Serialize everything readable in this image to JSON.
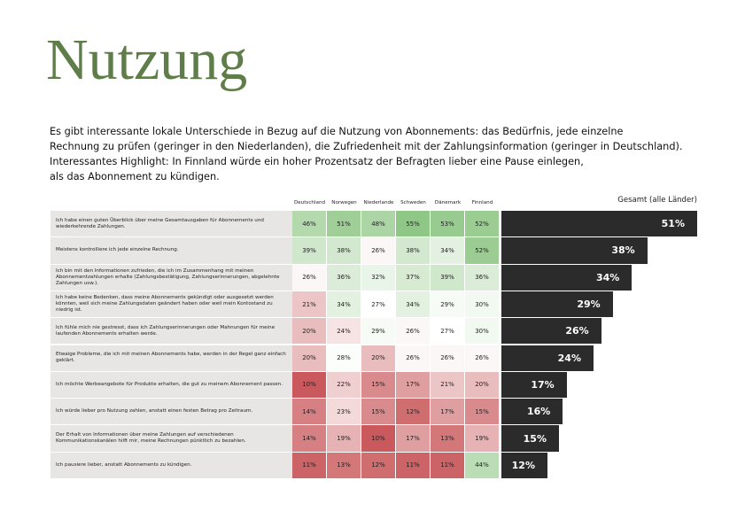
{
  "header": {
    "title": "Nutzung",
    "intro": [
      "Es gibt interessante lokale Unterschiede in Bezug auf die Nutzung von Abonnements: das Bedürfnis, jede einzelne",
      "Rechnung zu prüfen (geringer in den Niederlanden), die Zufriedenheit mit der Zahlungsinformation (geringer in Deutschland).",
      "Interessantes Highlight: In Finnland würde ein hoher Prozentsatz der Befragten lieber eine Pause einlegen,",
      "als das Abonnement zu kündigen."
    ]
  },
  "table": {
    "columns": [
      "Deutschland",
      "Norwegen",
      "Niederlande",
      "Schweden",
      "Dänemark",
      "Finnland"
    ],
    "total_header": "Gesamt (alle Länder)",
    "colors": {
      "low": "#c9595c",
      "mid": "#ffffff",
      "high": "#8fc786",
      "total": "#2b2b2b",
      "label_bg": "#e8e6e5"
    },
    "rows": [
      {
        "label": "Ich habe einen guten Überblick über meine Gesamtausgaben für Abonnements und wiederkehrende Zahlungen.",
        "values": [
          46,
          51,
          48,
          55,
          53,
          52
        ],
        "value_labels": [
          "46%",
          "51%",
          "48%",
          "55%",
          "53%",
          "52%"
        ],
        "total": 51,
        "total_label": "51%"
      },
      {
        "label": "Meistens kontrolliere ich jede einzelne Rechnung.",
        "values": [
          39,
          38,
          26,
          38,
          34,
          52
        ],
        "value_labels": [
          "39%",
          "38%",
          "26%",
          "38%",
          "34%",
          "52%"
        ],
        "total": 38,
        "total_label": "38%"
      },
      {
        "label": "Ich bin mit den Informationen zufrieden, die ich im Zusammenhang mit meinen Abonnementzahlungen erhalte (Zahlungsbestätigung, Zahlungserinnerungen, abgelehnte Zahlungen usw.).",
        "values": [
          26,
          36,
          32,
          37,
          39,
          36
        ],
        "value_labels": [
          "26%",
          "36%",
          "32%",
          "37%",
          "39%",
          "36%"
        ],
        "total": 34,
        "total_label": "34%"
      },
      {
        "label": "Ich habe keine Bedenken, dass meine Abonnements gekündigt oder ausgesetzt werden könnten, weil sich meine Zahlungsdaten geändert haben oder weil mein Kontostand zu niedrig ist.",
        "values": [
          21,
          34,
          27,
          34,
          29,
          30
        ],
        "value_labels": [
          "21%",
          "34%",
          "27%",
          "34%",
          "29%",
          "30%"
        ],
        "total": 29,
        "total_label": "29%"
      },
      {
        "label": "Ich fühle mich nie gestresst, dass ich Zahlungserinnerungen oder Mahnungen für meine laufenden Abonnements erhalten werde.",
        "values": [
          20,
          24,
          29,
          26,
          27,
          30
        ],
        "value_labels": [
          "20%",
          "24%",
          "29%",
          "26%",
          "27%",
          "30%"
        ],
        "total": 26,
        "total_label": "26%"
      },
      {
        "label": "Etwaige Probleme, die ich mit meinen Abonnements habe, werden in der Regel ganz einfach geklärt.",
        "values": [
          20,
          28,
          20,
          26,
          26,
          26
        ],
        "value_labels": [
          "20%",
          "28%",
          "20%",
          "26%",
          "26%",
          "26%"
        ],
        "total": 24,
        "total_label": "24%"
      },
      {
        "label": "Ich möchte Werbeangebote für Produkte erhalten, die gut zu meinem Abonnement passen.",
        "values": [
          10,
          22,
          15,
          17,
          21,
          20
        ],
        "value_labels": [
          "10%",
          "22%",
          "15%",
          "17%",
          "21%",
          "20%"
        ],
        "total": 17,
        "total_label": "17%"
      },
      {
        "label": "Ich würde lieber pro Nutzung zahlen, anstatt einen festen Betrag pro Zeitraum.",
        "values": [
          14,
          23,
          15,
          12,
          17,
          15
        ],
        "value_labels": [
          "14%",
          "23%",
          "15%",
          "12%",
          "17%",
          "15%"
        ],
        "total": 16,
        "total_label": "16%"
      },
      {
        "label": "Der Erhalt von Informationen über meine Zahlungen auf verschiedenen Kommunikationskanälen hilft mir, meine Rechnungen pünktlich zu bezahlen.",
        "values": [
          14,
          19,
          10,
          17,
          13,
          19
        ],
        "value_labels": [
          "14%",
          "19%",
          "10%",
          "17%",
          "13%",
          "19%"
        ],
        "total": 15,
        "total_label": "15%"
      },
      {
        "label": "Ich pausiere lieber, anstatt Abonnements zu kündigen.",
        "values": [
          11,
          13,
          12,
          11,
          11,
          44
        ],
        "value_labels": [
          "11%",
          "13%",
          "12%",
          "11%",
          "11%",
          "44%"
        ],
        "total": 12,
        "total_label": "12%"
      }
    ]
  }
}
